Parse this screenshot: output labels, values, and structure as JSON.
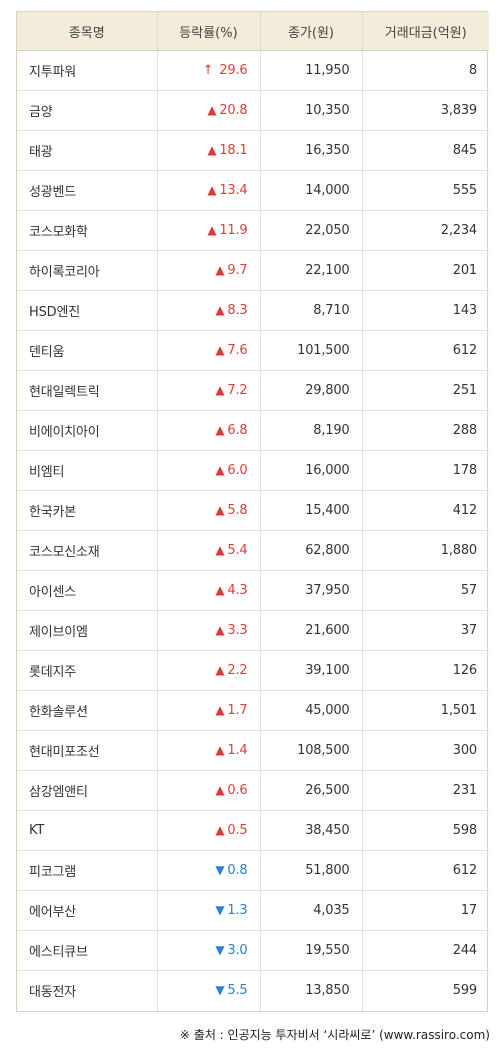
{
  "headers": [
    "종목명",
    "등락률(%)",
    "종가(원)",
    "거래대금(억원)"
  ],
  "rows": [
    {
      "name": "지투파워",
      "dir": "limit",
      "change": "29.6",
      "close": "11,950",
      "volume": "8"
    },
    {
      "name": "금양",
      "dir": "up",
      "change": "20.8",
      "close": "10,350",
      "volume": "3,839"
    },
    {
      "name": "태광",
      "dir": "up",
      "change": "18.1",
      "close": "16,350",
      "volume": "845"
    },
    {
      "name": "성광벤드",
      "dir": "up",
      "change": "13.4",
      "close": "14,000",
      "volume": "555"
    },
    {
      "name": "코스모화학",
      "dir": "up",
      "change": "11.9",
      "close": "22,050",
      "volume": "2,234"
    },
    {
      "name": "하이록코리아",
      "dir": "up",
      "change": "9.7",
      "close": "22,100",
      "volume": "201"
    },
    {
      "name": "HSD엔진",
      "dir": "up",
      "change": "8.3",
      "close": "8,710",
      "volume": "143"
    },
    {
      "name": "덴티움",
      "dir": "up",
      "change": "7.6",
      "close": "101,500",
      "volume": "612"
    },
    {
      "name": "현대일렉트릭",
      "dir": "up",
      "change": "7.2",
      "close": "29,800",
      "volume": "251"
    },
    {
      "name": "비에이치아이",
      "dir": "up",
      "change": "6.8",
      "close": "8,190",
      "volume": "288"
    },
    {
      "name": "비엠티",
      "dir": "up",
      "change": "6.0",
      "close": "16,000",
      "volume": "178"
    },
    {
      "name": "한국카본",
      "dir": "up",
      "change": "5.8",
      "close": "15,400",
      "volume": "412"
    },
    {
      "name": "코스모신소재",
      "dir": "up",
      "change": "5.4",
      "close": "62,800",
      "volume": "1,880"
    },
    {
      "name": "아이센스",
      "dir": "up",
      "change": "4.3",
      "close": "37,950",
      "volume": "57"
    },
    {
      "name": "제이브이엠",
      "dir": "up",
      "change": "3.3",
      "close": "21,600",
      "volume": "37"
    },
    {
      "name": "롯데지주",
      "dir": "up",
      "change": "2.2",
      "close": "39,100",
      "volume": "126"
    },
    {
      "name": "한화솔루션",
      "dir": "up",
      "change": "1.7",
      "close": "45,000",
      "volume": "1,501"
    },
    {
      "name": "현대미포조선",
      "dir": "up",
      "change": "1.4",
      "close": "108,500",
      "volume": "300"
    },
    {
      "name": "삼강엠앤티",
      "dir": "up",
      "change": "0.6",
      "close": "26,500",
      "volume": "231"
    },
    {
      "name": "KT",
      "dir": "up",
      "change": "0.5",
      "close": "38,450",
      "volume": "598"
    },
    {
      "name": "피코그램",
      "dir": "down",
      "change": "0.8",
      "close": "51,800",
      "volume": "612"
    },
    {
      "name": "에어부산",
      "dir": "down",
      "change": "1.3",
      "close": "4,035",
      "volume": "17"
    },
    {
      "name": "에스티큐브",
      "dir": "down",
      "change": "3.0",
      "close": "19,550",
      "volume": "244"
    },
    {
      "name": "대동전자",
      "dir": "down",
      "change": "5.5",
      "close": "13,850",
      "volume": "599"
    }
  ],
  "symbols": {
    "limit": "↑",
    "up": "▲",
    "down": "▼"
  },
  "colors": {
    "up": "#e03c3c",
    "down": "#2a7fd4",
    "header_bg": "#f2ecda"
  },
  "source": "※ 출처 : 인공지능 투자비서 ‘시라씨로’ (www.rassiro.com)"
}
